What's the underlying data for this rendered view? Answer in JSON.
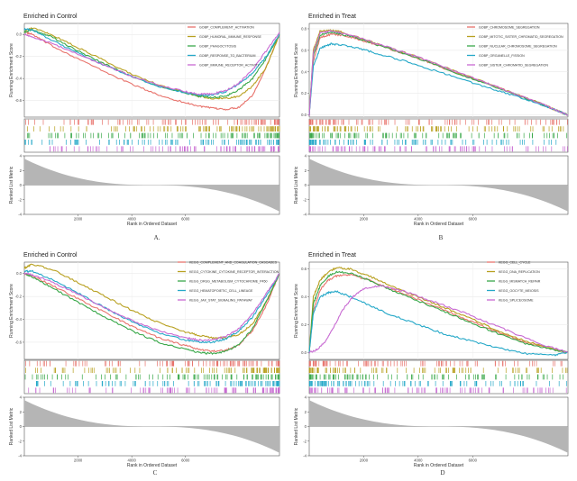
{
  "chart_data": [
    {
      "type": "line",
      "panel_label": "A.",
      "title": "Enriched in Control",
      "xlabel": "Rank in Ordered Dataset",
      "ylabel_top": "Running Enrichment Score",
      "ylabel_bottom": "Ranked List Metric",
      "xlim": [
        0,
        9500
      ],
      "xticks": [
        2000,
        4000,
        6000
      ],
      "ylim": [
        -0.75,
        0.1
      ],
      "yticks": [
        0.0,
        -0.2,
        -0.4,
        -0.6
      ],
      "metric_ylim": [
        -4,
        4
      ],
      "metric_yticks": [
        4,
        2,
        0,
        -2,
        -4
      ],
      "series": [
        {
          "name": "GOBP_COMPLEMENT_ACTIVATION",
          "color": "#e8736c",
          "x": [
            0,
            300,
            1000,
            2000,
            3000,
            4000,
            5000,
            6000,
            6500,
            7000,
            7500,
            8000,
            8500,
            9000,
            9500
          ],
          "values": [
            0.02,
            0.0,
            -0.1,
            -0.22,
            -0.34,
            -0.45,
            -0.55,
            -0.62,
            -0.65,
            -0.67,
            -0.68,
            -0.66,
            -0.55,
            -0.3,
            0.0
          ]
        },
        {
          "name": "GOBP_HUMORAL_IMMUNE_RESPONSE",
          "color": "#b8a020",
          "x": [
            0,
            300,
            1000,
            2000,
            3000,
            4000,
            5000,
            6000,
            6500,
            7000,
            7500,
            8000,
            8500,
            9000,
            9500
          ],
          "values": [
            0.03,
            0.06,
            0.0,
            -0.12,
            -0.24,
            -0.36,
            -0.46,
            -0.53,
            -0.56,
            -0.58,
            -0.58,
            -0.56,
            -0.47,
            -0.3,
            0.0
          ]
        },
        {
          "name": "GOBP_PHAGOCYTOSIS",
          "color": "#3aa84a",
          "x": [
            0,
            300,
            1000,
            2000,
            3000,
            4000,
            5000,
            6000,
            6500,
            7000,
            7500,
            8000,
            8500,
            9000,
            9500
          ],
          "values": [
            0.02,
            0.04,
            -0.02,
            -0.15,
            -0.27,
            -0.38,
            -0.47,
            -0.53,
            -0.56,
            -0.57,
            -0.56,
            -0.5,
            -0.4,
            -0.22,
            0.0
          ]
        },
        {
          "name": "GOBP_RESPONSE_TO_BACTERIUM",
          "color": "#25a8c8",
          "x": [
            0,
            300,
            1000,
            2000,
            3000,
            4000,
            5000,
            6000,
            6500,
            7000,
            7500,
            8000,
            8500,
            9000,
            9500
          ],
          "values": [
            0.05,
            0.04,
            -0.05,
            -0.17,
            -0.28,
            -0.38,
            -0.47,
            -0.53,
            -0.55,
            -0.55,
            -0.52,
            -0.45,
            -0.35,
            -0.2,
            0.0
          ]
        },
        {
          "name": "GOBP_IMMUNE_RECEPTOR_ACTIVITY",
          "color": "#c86ad2",
          "x": [
            0,
            300,
            1000,
            2000,
            3000,
            4000,
            5000,
            6000,
            6500,
            7000,
            7500,
            8000,
            8500,
            9000,
            9500
          ],
          "values": [
            0.0,
            -0.02,
            -0.08,
            -0.18,
            -0.28,
            -0.38,
            -0.46,
            -0.52,
            -0.54,
            -0.54,
            -0.51,
            -0.44,
            -0.32,
            -0.15,
            0.02
          ]
        }
      ]
    },
    {
      "type": "line",
      "panel_label": "B",
      "title": "Enriched in Treat",
      "xlabel": "Rank in Ordered Dataset",
      "ylabel_top": "Running Enrichment Score",
      "ylabel_bottom": "Ranked List Metric",
      "xlim": [
        0,
        9500
      ],
      "xticks": [
        2000,
        4000,
        6000
      ],
      "ylim": [
        -0.02,
        0.85
      ],
      "yticks": [
        0.8,
        0.6,
        0.4,
        0.2,
        0.0
      ],
      "metric_ylim": [
        -4,
        4
      ],
      "metric_yticks": [
        4,
        2,
        0,
        -2,
        -4
      ],
      "series": [
        {
          "name": "GOBP_CHROMOSOME_SEGREGATION",
          "color": "#e8736c",
          "x": [
            0,
            150,
            400,
            800,
            1200,
            1800,
            2500,
            3500,
            4500,
            5500,
            6500,
            7500,
            8500,
            9000,
            9500
          ],
          "values": [
            0.0,
            0.5,
            0.72,
            0.75,
            0.74,
            0.7,
            0.65,
            0.57,
            0.48,
            0.38,
            0.3,
            0.2,
            0.1,
            0.05,
            0.0
          ]
        },
        {
          "name": "GOBP_MITOTIC_SISTER_CHROMATID_SEGREGATION",
          "color": "#b8a020",
          "x": [
            0,
            150,
            400,
            800,
            1200,
            1800,
            2500,
            3500,
            4500,
            5500,
            6500,
            7500,
            8500,
            9000,
            9500
          ],
          "values": [
            0.0,
            0.6,
            0.78,
            0.79,
            0.77,
            0.72,
            0.66,
            0.58,
            0.49,
            0.39,
            0.3,
            0.2,
            0.11,
            0.05,
            0.0
          ]
        },
        {
          "name": "GOBP_NUCLEAR_CHROMOSOME_SEGREGATION",
          "color": "#3aa84a",
          "x": [
            0,
            150,
            400,
            800,
            1200,
            1800,
            2500,
            3500,
            4500,
            5500,
            6500,
            7500,
            8500,
            9000,
            9500
          ],
          "values": [
            0.0,
            0.55,
            0.74,
            0.77,
            0.75,
            0.71,
            0.65,
            0.57,
            0.48,
            0.38,
            0.29,
            0.2,
            0.1,
            0.05,
            0.0
          ]
        },
        {
          "name": "GOBP_ORGANELLE_FISSION",
          "color": "#25a8c8",
          "x": [
            0,
            150,
            400,
            800,
            1200,
            1800,
            2500,
            3500,
            4500,
            5500,
            6500,
            7500,
            8500,
            9000,
            9500
          ],
          "values": [
            0.0,
            0.45,
            0.62,
            0.66,
            0.65,
            0.62,
            0.57,
            0.5,
            0.42,
            0.34,
            0.26,
            0.18,
            0.1,
            0.05,
            0.0
          ]
        },
        {
          "name": "GOBP_SISTER_CHROMATID_SEGREGATION",
          "color": "#c86ad2",
          "x": [
            0,
            150,
            400,
            800,
            1200,
            1800,
            2500,
            3500,
            4500,
            5500,
            6500,
            7500,
            8500,
            9000,
            9500
          ],
          "values": [
            0.0,
            0.58,
            0.76,
            0.78,
            0.76,
            0.72,
            0.66,
            0.58,
            0.49,
            0.39,
            0.3,
            0.2,
            0.11,
            0.05,
            0.0
          ]
        }
      ]
    },
    {
      "type": "line",
      "panel_label": "C",
      "title": "Enriched in Control",
      "xlabel": "Rank in Ordered Dataset",
      "ylabel_top": "Running Enrichment Score",
      "ylabel_bottom": "Ranked List Metric",
      "xlim": [
        0,
        9500
      ],
      "xticks": [
        2000,
        4000,
        6000
      ],
      "ylim": [
        -0.75,
        0.1
      ],
      "yticks": [
        0.0,
        -0.2,
        -0.4,
        -0.6
      ],
      "metric_ylim": [
        -4,
        4
      ],
      "metric_yticks": [
        4,
        2,
        0,
        -2,
        -4
      ],
      "series": [
        {
          "name": "KEGG_COMPLEMENT_AND_COAGULATION_CASCADES",
          "color": "#e8736c",
          "x": [
            0,
            300,
            1000,
            2000,
            3000,
            4000,
            5000,
            6000,
            6500,
            7000,
            7500,
            8000,
            8500,
            9000,
            9500
          ],
          "values": [
            0.0,
            -0.02,
            -0.1,
            -0.22,
            -0.34,
            -0.46,
            -0.56,
            -0.63,
            -0.66,
            -0.68,
            -0.67,
            -0.62,
            -0.5,
            -0.28,
            0.0
          ]
        },
        {
          "name": "KEGG_CYTOKINE_CYTOKINE_RECEPTOR_INTERACTION",
          "color": "#b8a020",
          "x": [
            0,
            300,
            1000,
            2000,
            3000,
            4000,
            5000,
            6000,
            6500,
            7000,
            7500,
            8000,
            8500,
            9000,
            9500
          ],
          "values": [
            0.05,
            0.08,
            0.04,
            -0.08,
            -0.2,
            -0.32,
            -0.43,
            -0.51,
            -0.54,
            -0.56,
            -0.56,
            -0.53,
            -0.44,
            -0.25,
            0.0
          ]
        },
        {
          "name": "KEGG_DRUG_METABOLISM_CYTOCHROME_P450",
          "color": "#3aa84a",
          "x": [
            0,
            300,
            1000,
            2000,
            3000,
            4000,
            5000,
            6000,
            6500,
            7000,
            7500,
            8000,
            8500,
            9000,
            9500
          ],
          "values": [
            0.0,
            -0.03,
            -0.12,
            -0.25,
            -0.38,
            -0.5,
            -0.6,
            -0.66,
            -0.69,
            -0.7,
            -0.68,
            -0.62,
            -0.48,
            -0.25,
            0.0
          ]
        },
        {
          "name": "KEGG_HEMATOPOIETIC_CELL_LINEAGE",
          "color": "#25a8c8",
          "x": [
            0,
            300,
            1000,
            2000,
            3000,
            4000,
            5000,
            6000,
            6500,
            7000,
            7500,
            8000,
            8500,
            9000,
            9500
          ],
          "values": [
            0.02,
            0.02,
            -0.05,
            -0.17,
            -0.3,
            -0.42,
            -0.52,
            -0.58,
            -0.6,
            -0.6,
            -0.57,
            -0.5,
            -0.38,
            -0.2,
            0.0
          ]
        },
        {
          "name": "KEGG_JAK_STAT_SIGNALING_PATHWAY",
          "color": "#c86ad2",
          "x": [
            0,
            300,
            1000,
            2000,
            3000,
            4000,
            5000,
            6000,
            6500,
            7000,
            7500,
            8000,
            8500,
            9000,
            9500
          ],
          "values": [
            0.0,
            -0.01,
            -0.07,
            -0.18,
            -0.3,
            -0.41,
            -0.5,
            -0.56,
            -0.58,
            -0.58,
            -0.55,
            -0.48,
            -0.35,
            -0.18,
            0.0
          ]
        }
      ]
    },
    {
      "type": "line",
      "panel_label": "D",
      "title": "Enriched in Treat",
      "xlabel": "Rank in Ordered Dataset",
      "ylabel_top": "Running Enrichment Score",
      "ylabel_bottom": "Ranked List Metric",
      "xlim": [
        0,
        9500
      ],
      "xticks": [
        2000,
        4000,
        6000
      ],
      "ylim": [
        -0.05,
        0.65
      ],
      "yticks": [
        0.6,
        0.4,
        0.2,
        0.0
      ],
      "metric_ylim": [
        -4,
        4
      ],
      "metric_yticks": [
        4,
        2,
        0,
        -2,
        -4
      ],
      "series": [
        {
          "name": "KEGG_CELL_CYCLE",
          "color": "#e8736c",
          "x": [
            0,
            150,
            400,
            700,
            1000,
            1500,
            2200,
            3000,
            4000,
            5000,
            6000,
            7000,
            8000,
            9000,
            9500
          ],
          "values": [
            0.0,
            0.3,
            0.45,
            0.52,
            0.55,
            0.56,
            0.52,
            0.46,
            0.38,
            0.3,
            0.22,
            0.14,
            0.07,
            0.02,
            0.0
          ]
        },
        {
          "name": "KEGG_DNA_REPLICATION",
          "color": "#b8a020",
          "x": [
            0,
            150,
            400,
            700,
            1000,
            1500,
            2200,
            3000,
            4000,
            5000,
            6000,
            7000,
            8000,
            9000,
            9500
          ],
          "values": [
            0.0,
            0.4,
            0.52,
            0.58,
            0.61,
            0.6,
            0.55,
            0.48,
            0.4,
            0.32,
            0.24,
            0.15,
            0.08,
            0.02,
            0.0
          ]
        },
        {
          "name": "KEGG_MISMATCH_REPAIR",
          "color": "#3aa84a",
          "x": [
            0,
            150,
            400,
            700,
            1000,
            1500,
            2200,
            3000,
            4000,
            5000,
            6000,
            7000,
            8000,
            9000,
            9500
          ],
          "values": [
            0.0,
            0.35,
            0.48,
            0.55,
            0.58,
            0.57,
            0.52,
            0.45,
            0.37,
            0.29,
            0.21,
            0.13,
            0.06,
            0.02,
            0.0
          ]
        },
        {
          "name": "KEGG_OOCYTE_MEIOSIS",
          "color": "#25a8c8",
          "x": [
            0,
            150,
            400,
            700,
            1000,
            1500,
            2200,
            3000,
            4000,
            5000,
            6000,
            7000,
            8000,
            9000,
            9500
          ],
          "values": [
            0.0,
            0.28,
            0.4,
            0.43,
            0.44,
            0.4,
            0.34,
            0.27,
            0.2,
            0.13,
            0.08,
            0.03,
            -0.01,
            -0.02,
            0.0
          ]
        },
        {
          "name": "KEGG_SPLICEOSOME",
          "color": "#c86ad2",
          "x": [
            0,
            300,
            600,
            900,
            1200,
            1600,
            2000,
            2600,
            3500,
            4500,
            5500,
            6500,
            7500,
            8500,
            9500
          ],
          "values": [
            0.0,
            0.02,
            0.08,
            0.18,
            0.3,
            0.4,
            0.46,
            0.48,
            0.44,
            0.37,
            0.3,
            0.22,
            0.14,
            0.06,
            0.0
          ]
        }
      ]
    }
  ]
}
